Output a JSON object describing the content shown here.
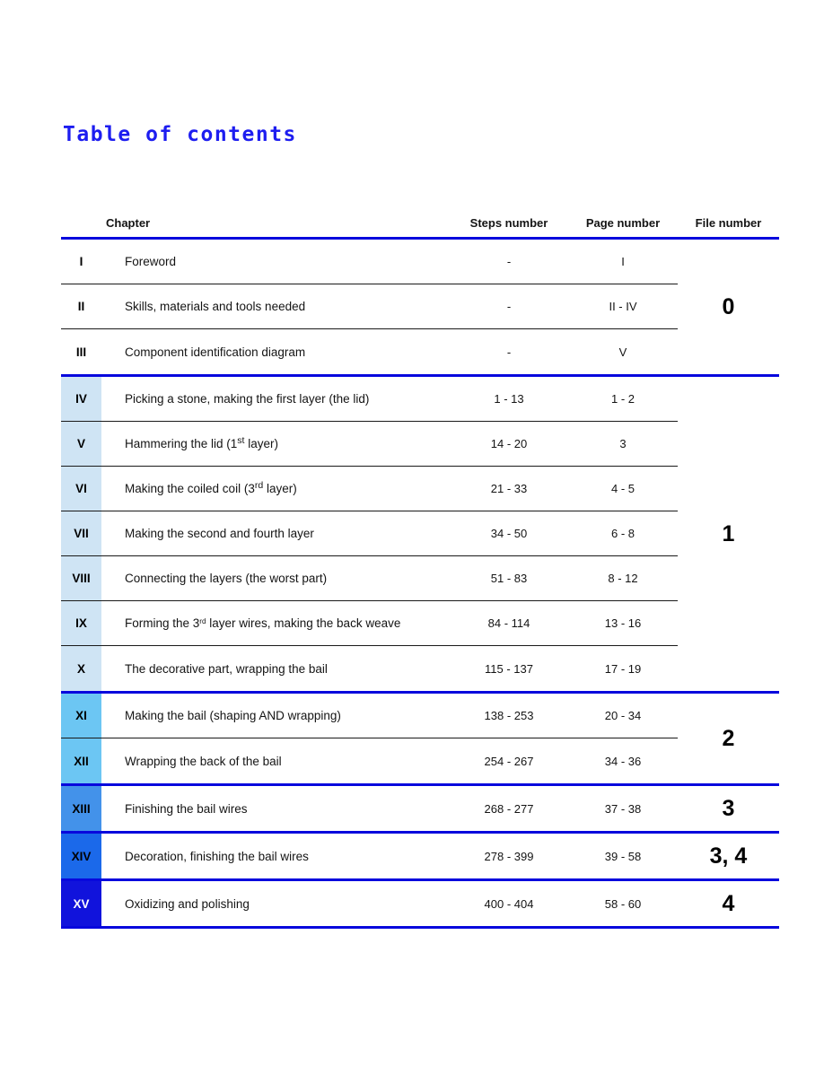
{
  "page": {
    "title": "Table of contents"
  },
  "colors": {
    "title_text": "#1d1df0",
    "accent_line": "#0808dd",
    "row_divider": "#1a1a1a",
    "group_intro_bg": "transparent",
    "group_1_bg": "#cfe4f4",
    "group_2_bg": "#6cc6f3",
    "group_3_bg": "#4392ea",
    "group_34_bg": "#1b69ea",
    "group_4_bg": "#1113dc"
  },
  "table": {
    "headers": {
      "chapter": "Chapter",
      "steps": "Steps number",
      "pages": "Page number",
      "file": "File number"
    },
    "groups": [
      {
        "file": "0",
        "num_bg": "transparent",
        "num_color": "#000000",
        "file_color": "#000000",
        "rows": [
          {
            "num": "I",
            "title": [
              {
                "t": "Foreword"
              }
            ],
            "steps": "-",
            "pages": "I"
          },
          {
            "num": "II",
            "title": [
              {
                "t": "Skills, materials and tools needed"
              }
            ],
            "steps": "-",
            "pages": "II - IV"
          },
          {
            "num": "III",
            "title": [
              {
                "t": "Component identification diagram"
              }
            ],
            "steps": "-",
            "pages": "V"
          }
        ]
      },
      {
        "file": "1",
        "num_bg": "#cfe4f4",
        "num_color": "#000000",
        "file_color": "#000000",
        "rows": [
          {
            "num": "IV",
            "title": [
              {
                "t": "Picking a stone, making the first layer (the lid)"
              }
            ],
            "steps": "1 - 13",
            "pages": "1 - 2"
          },
          {
            "num": "V",
            "title": [
              {
                "t": "Hammering the lid (1"
              },
              {
                "t": "st",
                "style": "sup"
              },
              {
                "t": " layer)"
              }
            ],
            "steps": "14 - 20",
            "pages": "3"
          },
          {
            "num": "VI",
            "title": [
              {
                "t": "Making the coiled coil (3"
              },
              {
                "t": "rd",
                "style": "sup"
              },
              {
                "t": " layer)"
              }
            ],
            "steps": "21 - 33",
            "pages": "4 - 5"
          },
          {
            "num": "VII",
            "title": [
              {
                "t": "Making the second and fourth layer"
              }
            ],
            "steps": "34 - 50",
            "pages": "6 - 8"
          },
          {
            "num": "VIII",
            "title": [
              {
                "t": "Connecting the layers (the worst part)"
              }
            ],
            "steps": "51 - 83",
            "pages": "8 - 12"
          },
          {
            "num": "IX",
            "title": [
              {
                "t": "Forming the 3"
              },
              {
                "t": "rd",
                "style": "sup-sm"
              },
              {
                "t": " layer wires, making the back weave"
              }
            ],
            "steps": "84 - 114",
            "pages": "13 - 16"
          },
          {
            "num": "X",
            "title": [
              {
                "t": "The decorative part, wrapping the bail"
              }
            ],
            "steps": "115 - 137",
            "pages": "17 - 19"
          }
        ]
      },
      {
        "file": "2",
        "num_bg": "#6cc6f3",
        "num_color": "#000000",
        "file_color": "#000000",
        "rows": [
          {
            "num": "XI",
            "title": [
              {
                "t": "Making the bail (shaping AND wrapping)"
              }
            ],
            "steps": "138 - 253",
            "pages": "20 - 34"
          },
          {
            "num": "XII",
            "title": [
              {
                "t": "Wrapping the back of the bail"
              }
            ],
            "steps": "254 - 267",
            "pages": "34 - 36"
          }
        ]
      },
      {
        "file": "3",
        "num_bg": "#4392ea",
        "num_color": "#000000",
        "file_color": "#000000",
        "rows": [
          {
            "num": "XIII",
            "title": [
              {
                "t": "Finishing the bail wires"
              }
            ],
            "steps": "268 - 277",
            "pages": "37 - 38"
          }
        ]
      },
      {
        "file": "3, 4",
        "num_bg": "#1b69ea",
        "num_color": "#000000",
        "file_color": "#000000",
        "rows": [
          {
            "num": "XIV",
            "title": [
              {
                "t": "Decoration, finishing the bail wires"
              }
            ],
            "steps": "278 - 399",
            "pages": "39 - 58"
          }
        ]
      },
      {
        "file": "4",
        "num_bg": "#1113dc",
        "num_color": "#ffffff",
        "file_color": "#000000",
        "rows": [
          {
            "num": "XV",
            "title": [
              {
                "t": "Oxidizing and polishing"
              }
            ],
            "steps": "400 - 404",
            "pages": "58 - 60"
          }
        ]
      }
    ]
  }
}
